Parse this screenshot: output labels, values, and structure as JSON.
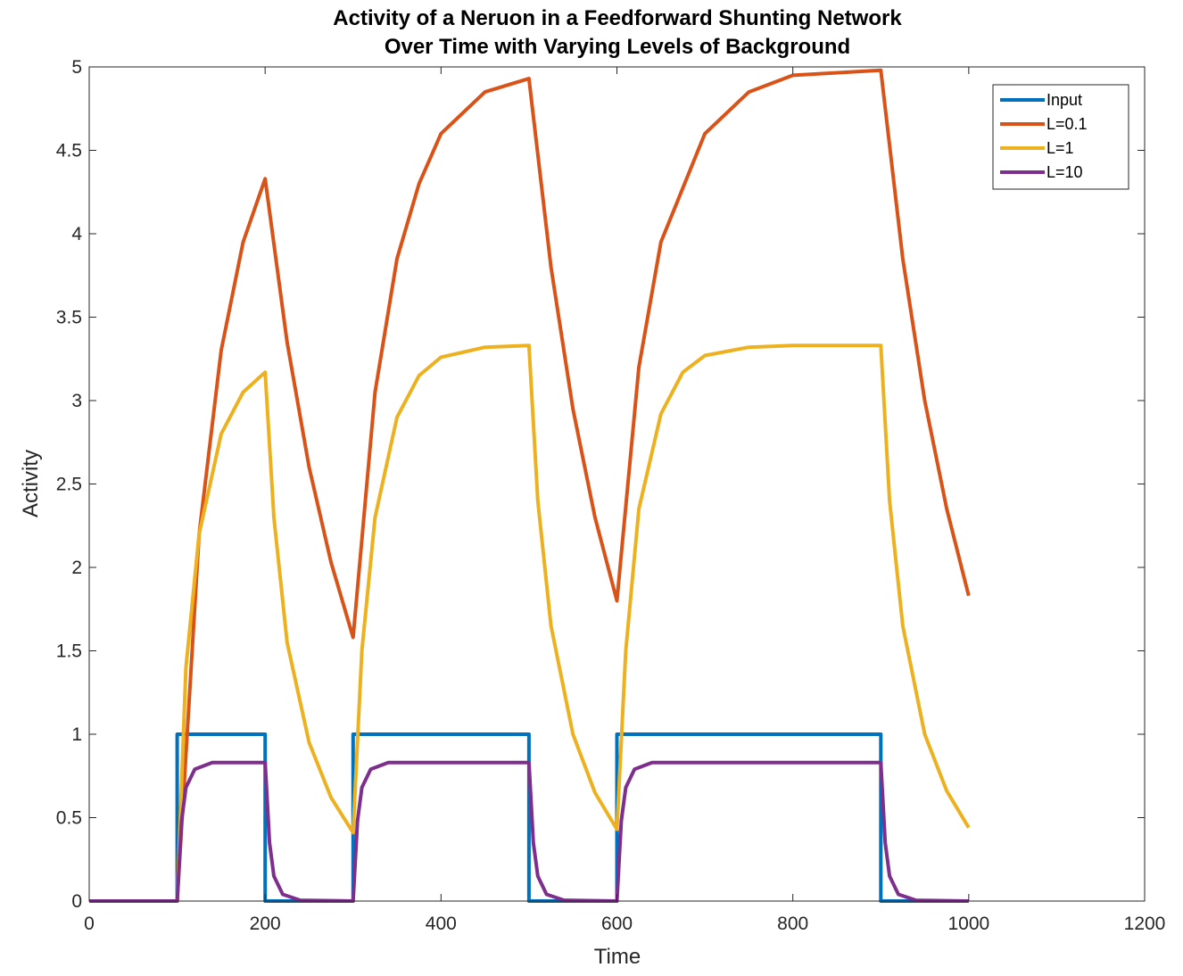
{
  "chart_data": {
    "type": "line",
    "title_lines": [
      "Activity of a Neruon in a Feedforward Shunting Network",
      "Over Time with Varying Levels of Background"
    ],
    "xlabel": "Time",
    "ylabel": "Activity",
    "xlim": [
      0,
      1200
    ],
    "ylim": [
      0,
      5
    ],
    "xticks": [
      0,
      200,
      400,
      600,
      800,
      1000,
      1200
    ],
    "yticks": [
      0,
      0.5,
      1,
      1.5,
      2,
      2.5,
      3,
      3.5,
      4,
      4.5,
      5
    ],
    "legend_position": "top-right",
    "grid": false,
    "x_range": [
      0,
      1000
    ],
    "input_pulses": [
      [
        100,
        200
      ],
      [
        300,
        500
      ],
      [
        600,
        900
      ]
    ],
    "series": [
      {
        "name": "Input",
        "color": "#0072BD",
        "points": [
          [
            0,
            0
          ],
          [
            100,
            0
          ],
          [
            100,
            1
          ],
          [
            200,
            1
          ],
          [
            200,
            0
          ],
          [
            300,
            0
          ],
          [
            300,
            1
          ],
          [
            500,
            1
          ],
          [
            500,
            0
          ],
          [
            600,
            0
          ],
          [
            600,
            1
          ],
          [
            900,
            1
          ],
          [
            900,
            0
          ],
          [
            1000,
            0
          ]
        ]
      },
      {
        "name": "L=0.1",
        "color": "#D95319",
        "points": [
          [
            0,
            0
          ],
          [
            100,
            0
          ],
          [
            125,
            2.2
          ],
          [
            150,
            3.3
          ],
          [
            175,
            3.95
          ],
          [
            200,
            4.33
          ],
          [
            225,
            3.35
          ],
          [
            250,
            2.6
          ],
          [
            275,
            2.03
          ],
          [
            300,
            1.58
          ],
          [
            325,
            3.05
          ],
          [
            350,
            3.85
          ],
          [
            375,
            4.3
          ],
          [
            400,
            4.6
          ],
          [
            450,
            4.85
          ],
          [
            500,
            4.93
          ],
          [
            525,
            3.8
          ],
          [
            550,
            2.95
          ],
          [
            575,
            2.3
          ],
          [
            600,
            1.8
          ],
          [
            625,
            3.2
          ],
          [
            650,
            3.95
          ],
          [
            700,
            4.6
          ],
          [
            750,
            4.85
          ],
          [
            800,
            4.95
          ],
          [
            900,
            4.98
          ],
          [
            925,
            3.85
          ],
          [
            950,
            3.0
          ],
          [
            975,
            2.35
          ],
          [
            1000,
            1.83
          ]
        ]
      },
      {
        "name": "L=1",
        "color": "#EDB120",
        "points": [
          [
            0,
            0
          ],
          [
            100,
            0
          ],
          [
            110,
            1.4
          ],
          [
            125,
            2.2
          ],
          [
            150,
            2.8
          ],
          [
            175,
            3.05
          ],
          [
            200,
            3.17
          ],
          [
            210,
            2.3
          ],
          [
            225,
            1.55
          ],
          [
            250,
            0.95
          ],
          [
            275,
            0.62
          ],
          [
            300,
            0.41
          ],
          [
            310,
            1.5
          ],
          [
            325,
            2.3
          ],
          [
            350,
            2.9
          ],
          [
            375,
            3.15
          ],
          [
            400,
            3.26
          ],
          [
            450,
            3.32
          ],
          [
            500,
            3.33
          ],
          [
            510,
            2.4
          ],
          [
            525,
            1.65
          ],
          [
            550,
            1.0
          ],
          [
            575,
            0.65
          ],
          [
            600,
            0.43
          ],
          [
            610,
            1.5
          ],
          [
            625,
            2.35
          ],
          [
            650,
            2.92
          ],
          [
            675,
            3.17
          ],
          [
            700,
            3.27
          ],
          [
            750,
            3.32
          ],
          [
            800,
            3.33
          ],
          [
            900,
            3.33
          ],
          [
            910,
            2.4
          ],
          [
            925,
            1.65
          ],
          [
            950,
            1.0
          ],
          [
            975,
            0.66
          ],
          [
            1000,
            0.44
          ]
        ]
      },
      {
        "name": "L=10",
        "color": "#7E2F8E",
        "points": [
          [
            0,
            0
          ],
          [
            100,
            0
          ],
          [
            105,
            0.48
          ],
          [
            110,
            0.68
          ],
          [
            120,
            0.79
          ],
          [
            140,
            0.83
          ],
          [
            200,
            0.83
          ],
          [
            205,
            0.35
          ],
          [
            210,
            0.15
          ],
          [
            220,
            0.04
          ],
          [
            240,
            0.005
          ],
          [
            300,
            0
          ],
          [
            305,
            0.48
          ],
          [
            310,
            0.68
          ],
          [
            320,
            0.79
          ],
          [
            340,
            0.83
          ],
          [
            500,
            0.83
          ],
          [
            505,
            0.35
          ],
          [
            510,
            0.15
          ],
          [
            520,
            0.04
          ],
          [
            540,
            0.005
          ],
          [
            600,
            0
          ],
          [
            605,
            0.48
          ],
          [
            610,
            0.68
          ],
          [
            620,
            0.79
          ],
          [
            640,
            0.83
          ],
          [
            900,
            0.83
          ],
          [
            905,
            0.35
          ],
          [
            910,
            0.15
          ],
          [
            920,
            0.04
          ],
          [
            940,
            0.005
          ],
          [
            1000,
            0
          ]
        ]
      }
    ]
  }
}
